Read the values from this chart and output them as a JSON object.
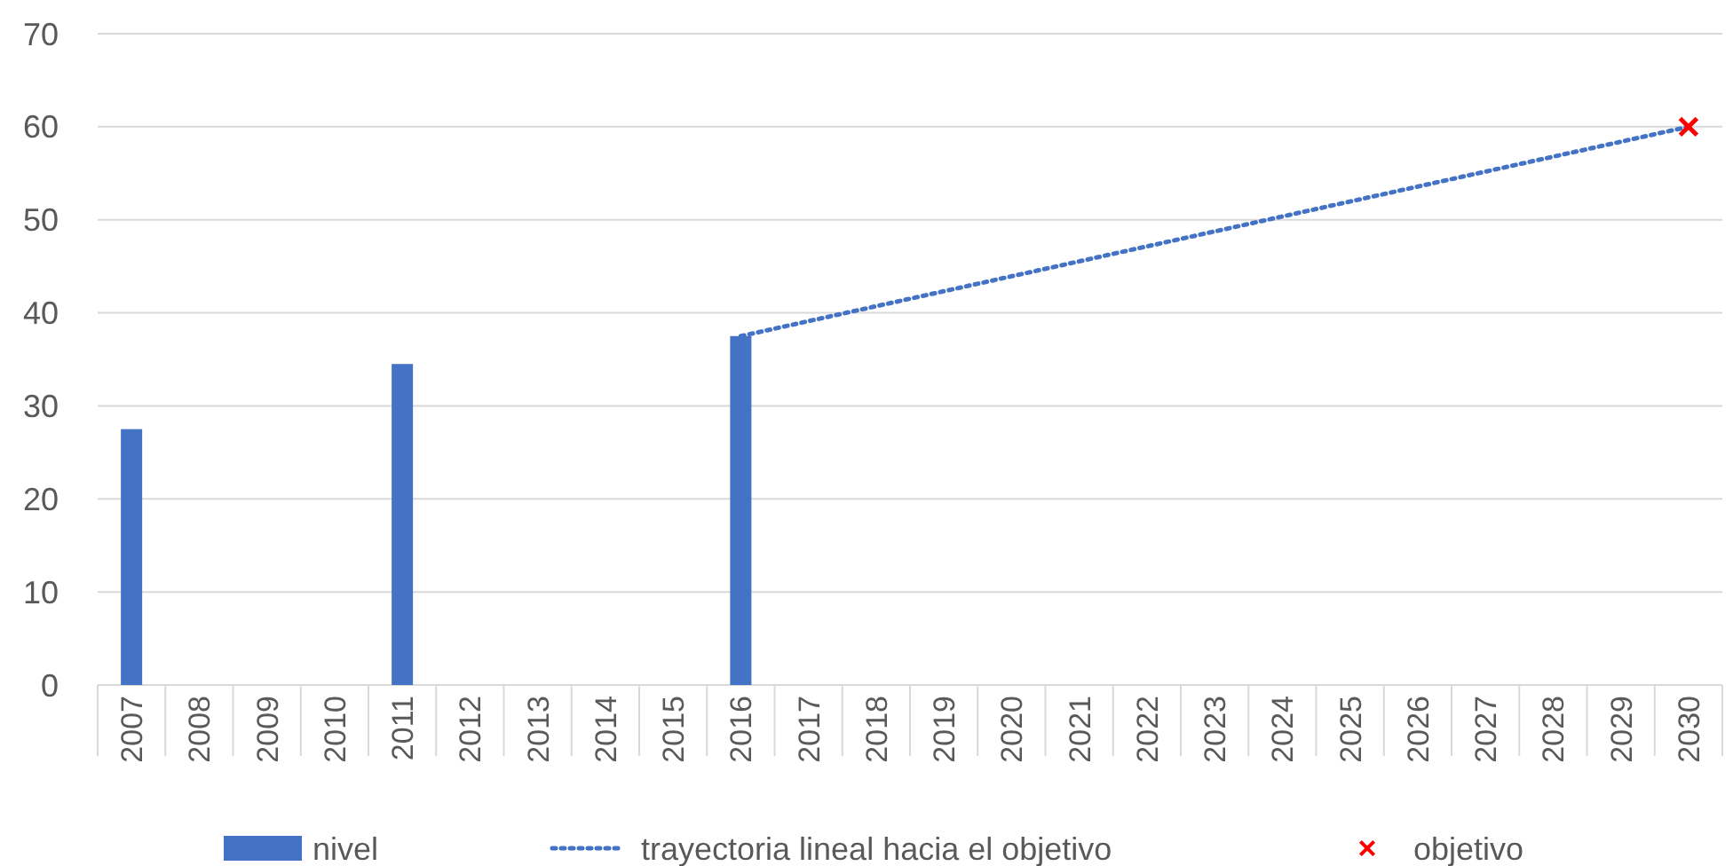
{
  "chart_data": {
    "type": "bar",
    "categories": [
      "2007",
      "2008",
      "2009",
      "2010",
      "2011",
      "2012",
      "2013",
      "2014",
      "2015",
      "2016",
      "2017",
      "2018",
      "2019",
      "2020",
      "2021",
      "2022",
      "2023",
      "2024",
      "2025",
      "2026",
      "2027",
      "2028",
      "2029",
      "2030"
    ],
    "series": [
      {
        "name": "nivel",
        "color": "#4472c4",
        "values": [
          27.5,
          null,
          null,
          null,
          34.5,
          null,
          null,
          null,
          null,
          37.5,
          null,
          null,
          null,
          null,
          null,
          null,
          null,
          null,
          null,
          null,
          null,
          null,
          null,
          null
        ]
      },
      {
        "name": "trayectoria lineal hacia el objetivo",
        "type": "line",
        "color": "#4472c4",
        "line_style": "dotted",
        "values": [
          null,
          null,
          null,
          null,
          null,
          null,
          null,
          null,
          null,
          37.5,
          null,
          null,
          null,
          null,
          null,
          null,
          null,
          null,
          null,
          null,
          null,
          null,
          null,
          60
        ]
      },
      {
        "name": "objetivo",
        "type": "scatter",
        "color": "#ff0000",
        "marker": "cross",
        "values": [
          null,
          null,
          null,
          null,
          null,
          null,
          null,
          null,
          null,
          null,
          null,
          null,
          null,
          null,
          null,
          null,
          null,
          null,
          null,
          null,
          null,
          null,
          null,
          60
        ]
      }
    ],
    "ylim": [
      0,
      70
    ],
    "yticks": [
      0,
      10,
      20,
      30,
      40,
      50,
      60,
      70
    ],
    "grid": "y",
    "legend": "bottom"
  }
}
